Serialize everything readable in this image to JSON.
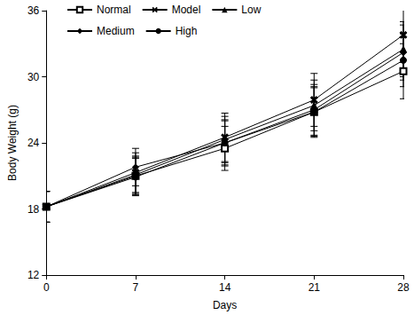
{
  "chart_data": {
    "type": "line",
    "x_label": "Days",
    "y_label": "Body Weight (g)",
    "x": [
      0,
      7,
      14,
      21,
      28
    ],
    "xlim": [
      0,
      28
    ],
    "xticks": [
      0,
      7,
      14,
      21,
      28
    ],
    "ylim": [
      12,
      36
    ],
    "yticks": [
      12,
      18,
      24,
      30,
      36
    ],
    "grid": false,
    "legend": "top-left",
    "series": [
      {
        "name": "Normal",
        "color": "#000000",
        "marker": "square-open",
        "values": [
          18.2,
          21.0,
          23.5,
          26.8,
          30.5
        ],
        "errors": [
          1.4,
          1.7,
          2.0,
          2.3,
          2.5
        ]
      },
      {
        "name": "Model",
        "color": "#000000",
        "marker": "x",
        "values": [
          18.2,
          21.3,
          24.5,
          27.9,
          33.8
        ],
        "errors": [
          1.4,
          1.8,
          2.2,
          2.4,
          2.5
        ]
      },
      {
        "name": "Low",
        "color": "#000000",
        "marker": "triangle",
        "values": [
          18.2,
          21.1,
          24.3,
          27.4,
          32.5
        ],
        "errors": [
          1.4,
          1.7,
          2.1,
          2.3,
          2.5
        ]
      },
      {
        "name": "Medium",
        "color": "#000000",
        "marker": "diamond",
        "values": [
          18.2,
          21.8,
          24.0,
          27.0,
          32.2
        ],
        "errors": [
          1.4,
          1.7,
          2.1,
          2.3,
          2.5
        ]
      },
      {
        "name": "High",
        "color": "#000000",
        "marker": "circle",
        "values": [
          18.2,
          20.9,
          24.0,
          26.8,
          31.5
        ],
        "errors": [
          1.4,
          1.7,
          2.0,
          2.2,
          2.4
        ]
      }
    ]
  }
}
